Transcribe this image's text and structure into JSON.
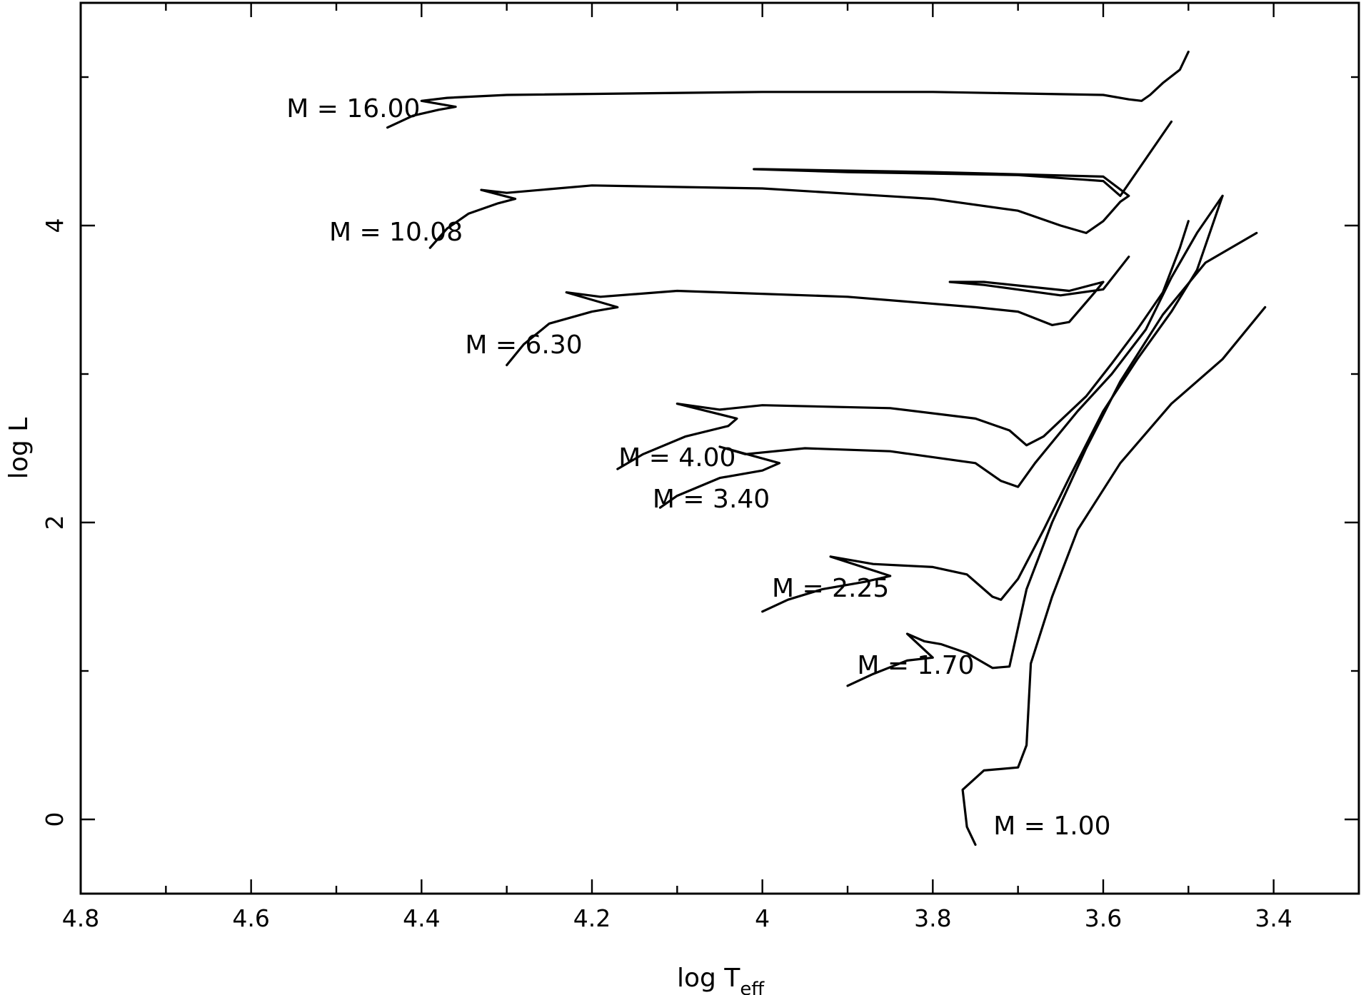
{
  "chart_data": {
    "type": "line",
    "xlabel": "log T",
    "xlabel_subscript": "eff",
    "ylabel": "log L",
    "xlim": [
      4.8,
      3.3
    ],
    "ylim": [
      -0.5,
      5.5
    ],
    "x_reversed": true,
    "grid": false,
    "x_ticks": [
      4.8,
      4.6,
      4.4,
      4.2,
      4.0,
      3.8,
      3.6,
      3.4
    ],
    "x_tick_labels": [
      "4.8",
      "4.6",
      "4.4",
      "4.2",
      "4",
      "3.8",
      "3.6",
      "3.4"
    ],
    "y_ticks": [
      0,
      2,
      4
    ],
    "y_tick_labels": [
      "0",
      "2",
      "4"
    ],
    "series": [
      {
        "name": "M = 16.00",
        "label_at": [
          4.48,
          4.73
        ],
        "points": [
          [
            4.44,
            4.66
          ],
          [
            4.41,
            4.74
          ],
          [
            4.38,
            4.78
          ],
          [
            4.36,
            4.8
          ],
          [
            4.4,
            4.84
          ],
          [
            4.37,
            4.86
          ],
          [
            4.3,
            4.88
          ],
          [
            4.0,
            4.9
          ],
          [
            3.8,
            4.9
          ],
          [
            3.6,
            4.88
          ],
          [
            3.57,
            4.85
          ],
          [
            3.555,
            4.84
          ],
          [
            3.545,
            4.88
          ],
          [
            3.53,
            4.96
          ],
          [
            3.51,
            5.05
          ],
          [
            3.5,
            5.17
          ]
        ]
      },
      {
        "name": "M = 10.08",
        "label_at": [
          4.43,
          3.9
        ],
        "points": [
          [
            4.39,
            3.85
          ],
          [
            4.37,
            3.98
          ],
          [
            4.345,
            4.08
          ],
          [
            4.31,
            4.15
          ],
          [
            4.29,
            4.18
          ],
          [
            4.33,
            4.24
          ],
          [
            4.3,
            4.22
          ],
          [
            4.2,
            4.27
          ],
          [
            4.0,
            4.25
          ],
          [
            3.8,
            4.18
          ],
          [
            3.7,
            4.1
          ],
          [
            3.65,
            4.0
          ],
          [
            3.62,
            3.95
          ],
          [
            3.6,
            4.03
          ],
          [
            3.58,
            4.16
          ],
          [
            3.57,
            4.2
          ],
          [
            3.6,
            4.33
          ],
          [
            3.8,
            4.36
          ],
          [
            4.0,
            4.38
          ],
          [
            4.01,
            4.38
          ],
          [
            3.9,
            4.36
          ],
          [
            3.7,
            4.34
          ],
          [
            3.6,
            4.3
          ],
          [
            3.58,
            4.2
          ],
          [
            3.55,
            4.45
          ],
          [
            3.52,
            4.7
          ]
        ]
      },
      {
        "name": "M = 6.30",
        "label_at": [
          4.28,
          3.14
        ],
        "points": [
          [
            4.3,
            3.06
          ],
          [
            4.28,
            3.2
          ],
          [
            4.25,
            3.34
          ],
          [
            4.2,
            3.42
          ],
          [
            4.17,
            3.45
          ],
          [
            4.23,
            3.55
          ],
          [
            4.19,
            3.52
          ],
          [
            4.1,
            3.56
          ],
          [
            3.9,
            3.52
          ],
          [
            3.75,
            3.45
          ],
          [
            3.7,
            3.42
          ],
          [
            3.66,
            3.33
          ],
          [
            3.64,
            3.35
          ],
          [
            3.61,
            3.55
          ],
          [
            3.6,
            3.62
          ],
          [
            3.64,
            3.56
          ],
          [
            3.74,
            3.62
          ],
          [
            3.78,
            3.62
          ],
          [
            3.74,
            3.6
          ],
          [
            3.65,
            3.53
          ],
          [
            3.6,
            3.57
          ],
          [
            3.57,
            3.79
          ]
        ]
      },
      {
        "name": "M = 4.00",
        "label_at": [
          4.1,
          2.38
        ],
        "points": [
          [
            4.17,
            2.36
          ],
          [
            4.14,
            2.46
          ],
          [
            4.09,
            2.58
          ],
          [
            4.04,
            2.65
          ],
          [
            4.03,
            2.7
          ],
          [
            4.1,
            2.8
          ],
          [
            4.05,
            2.76
          ],
          [
            4.0,
            2.79
          ],
          [
            3.85,
            2.77
          ],
          [
            3.75,
            2.7
          ],
          [
            3.71,
            2.62
          ],
          [
            3.69,
            2.52
          ],
          [
            3.67,
            2.58
          ],
          [
            3.62,
            2.85
          ],
          [
            3.59,
            3.07
          ],
          [
            3.56,
            3.3
          ],
          [
            3.53,
            3.55
          ],
          [
            3.51,
            3.85
          ],
          [
            3.5,
            4.03
          ]
        ]
      },
      {
        "name": "M = 3.40",
        "label_at": [
          4.06,
          2.1
        ],
        "points": [
          [
            4.12,
            2.1
          ],
          [
            4.1,
            2.18
          ],
          [
            4.05,
            2.3
          ],
          [
            4.0,
            2.35
          ],
          [
            3.98,
            2.4
          ],
          [
            4.05,
            2.51
          ],
          [
            4.02,
            2.46
          ],
          [
            3.95,
            2.5
          ],
          [
            3.85,
            2.48
          ],
          [
            3.75,
            2.4
          ],
          [
            3.72,
            2.28
          ],
          [
            3.7,
            2.24
          ],
          [
            3.68,
            2.4
          ],
          [
            3.63,
            2.75
          ],
          [
            3.59,
            3.0
          ],
          [
            3.55,
            3.3
          ],
          [
            3.52,
            3.65
          ],
          [
            3.49,
            3.95
          ],
          [
            3.46,
            4.2
          ]
        ]
      },
      {
        "name": "M = 2.25",
        "label_at": [
          3.92,
          1.5
        ],
        "points": [
          [
            4.0,
            1.4
          ],
          [
            3.97,
            1.48
          ],
          [
            3.93,
            1.55
          ],
          [
            3.88,
            1.6
          ],
          [
            3.85,
            1.64
          ],
          [
            3.92,
            1.77
          ],
          [
            3.87,
            1.72
          ],
          [
            3.8,
            1.7
          ],
          [
            3.76,
            1.65
          ],
          [
            3.73,
            1.5
          ],
          [
            3.72,
            1.48
          ],
          [
            3.7,
            1.62
          ],
          [
            3.67,
            1.95
          ],
          [
            3.64,
            2.3
          ],
          [
            3.6,
            2.75
          ],
          [
            3.56,
            3.1
          ],
          [
            3.52,
            3.42
          ],
          [
            3.49,
            3.7
          ],
          [
            3.46,
            4.2
          ]
        ]
      },
      {
        "name": "M = 1.70",
        "label_at": [
          3.82,
          0.98
        ],
        "points": [
          [
            3.9,
            0.9
          ],
          [
            3.87,
            0.98
          ],
          [
            3.83,
            1.07
          ],
          [
            3.8,
            1.09
          ],
          [
            3.83,
            1.25
          ],
          [
            3.81,
            1.2
          ],
          [
            3.79,
            1.18
          ],
          [
            3.76,
            1.12
          ],
          [
            3.73,
            1.02
          ],
          [
            3.71,
            1.03
          ],
          [
            3.69,
            1.55
          ],
          [
            3.66,
            2.0
          ],
          [
            3.62,
            2.5
          ],
          [
            3.58,
            2.95
          ],
          [
            3.53,
            3.4
          ],
          [
            3.48,
            3.75
          ],
          [
            3.42,
            3.95
          ]
        ]
      },
      {
        "name": "M = 1.00",
        "label_at": [
          3.66,
          -0.1
        ],
        "points": [
          [
            3.75,
            -0.17
          ],
          [
            3.76,
            -0.05
          ],
          [
            3.765,
            0.2
          ],
          [
            3.74,
            0.33
          ],
          [
            3.7,
            0.35
          ],
          [
            3.69,
            0.5
          ],
          [
            3.685,
            1.05
          ],
          [
            3.66,
            1.5
          ],
          [
            3.63,
            1.95
          ],
          [
            3.58,
            2.4
          ],
          [
            3.52,
            2.8
          ],
          [
            3.46,
            3.1
          ],
          [
            3.41,
            3.45
          ]
        ]
      }
    ]
  }
}
